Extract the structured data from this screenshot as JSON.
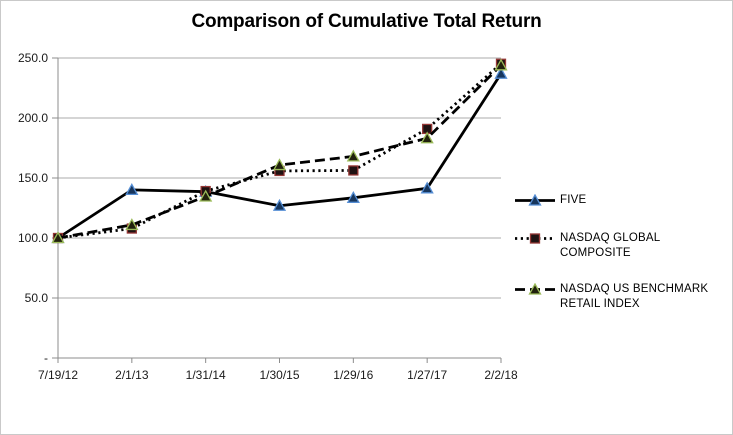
{
  "chart": {
    "title": "Comparison of Cumulative Total Return"
  },
  "chart_data": {
    "type": "line",
    "title": "Comparison of Cumulative Total Return",
    "categories": [
      "7/19/12",
      "2/1/13",
      "1/31/14",
      "1/30/15",
      "1/29/16",
      "1/27/17",
      "2/2/18"
    ],
    "series": [
      {
        "name": "FIVE",
        "values": [
          100.0,
          140.1,
          138.6,
          126.9,
          133.5,
          141.4,
          236.9
        ],
        "line_style": "solid",
        "line_color": "#000000",
        "marker": "triangle",
        "marker_fill": "#17365D",
        "marker_edge": "#558ED5"
      },
      {
        "name": "NASDAQ GLOBAL COMPOSITE",
        "values": [
          100.0,
          107.9,
          139.1,
          155.9,
          156.3,
          190.9,
          245.2
        ],
        "line_style": "dotted",
        "line_color": "#000000",
        "marker": "square",
        "marker_fill": "#1F1212",
        "marker_edge": "#953735"
      },
      {
        "name": "NASDAQ US BENCHMARK RETAIL INDEX",
        "values": [
          100.0,
          110.9,
          134.6,
          160.8,
          168.0,
          183.1,
          243.9
        ],
        "line_style": "dashed",
        "line_color": "#000000",
        "marker": "triangle",
        "marker_fill": "#21210D",
        "marker_edge": "#9BBB59"
      }
    ],
    "xlabel": "",
    "ylabel": "",
    "ylim": [
      0,
      250
    ],
    "y_ticks": [
      0,
      50,
      100,
      150,
      200,
      250
    ],
    "y_tick_labels": [
      "-",
      "50.0",
      "100.0",
      "150.0",
      "200.0",
      "250.0"
    ],
    "grid": "horizontal",
    "legend_position": "right",
    "colors": {
      "grid_color": "#ABABAB",
      "axis_color": "#8C8C8C",
      "tick_label_color": "#1A1A1A",
      "title_color": "#000000",
      "frame_border": "#C9C9C9",
      "background": "#FFFFFF"
    }
  }
}
